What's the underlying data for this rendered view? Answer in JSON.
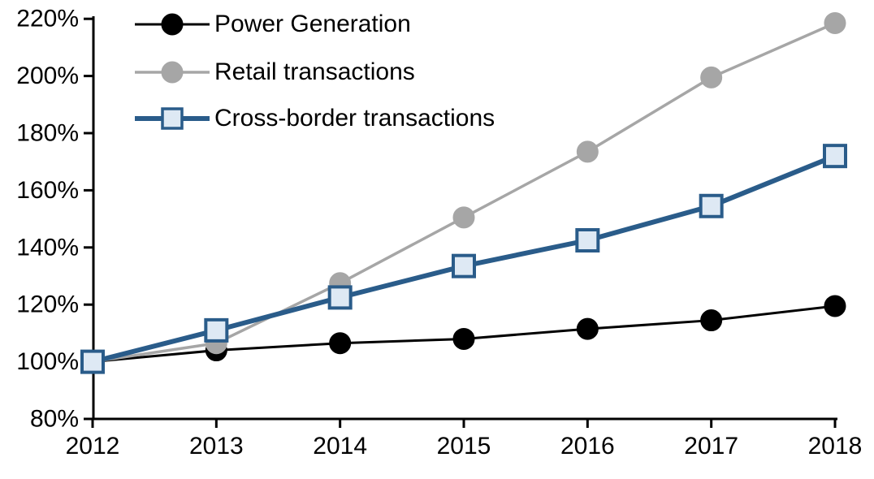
{
  "chart_data": {
    "type": "line",
    "title": "",
    "xlabel": "",
    "ylabel": "",
    "x_labels": [
      "2012",
      "2013",
      "2014",
      "2015",
      "2016",
      "2017",
      "2018"
    ],
    "ylim": [
      80,
      220
    ],
    "y_tick_step": 20,
    "y_tick_suffix": "%",
    "y_tick_labels": [
      "80%",
      "100%",
      "120%",
      "140%",
      "160%",
      "180%",
      "200%",
      "220%"
    ],
    "grid": false,
    "legend_position": "top-left-inside",
    "series": [
      {
        "name": "Power Generation",
        "marker": "circle",
        "line_color": "#000000",
        "marker_fill": "#000000",
        "marker_stroke": "#000000",
        "line_width": 3,
        "values": [
          100,
          104,
          106.5,
          108,
          111.5,
          114.5,
          119.5
        ]
      },
      {
        "name": "Retail transactions",
        "marker": "circle",
        "line_color": "#A6A6A6",
        "marker_fill": "#A6A6A6",
        "marker_stroke": "#A6A6A6",
        "line_width": 3.5,
        "values": [
          100,
          106.5,
          127.5,
          150.5,
          173.5,
          199.5,
          218.5
        ]
      },
      {
        "name": "Cross-border transactions",
        "marker": "square",
        "line_color": "#2A5C8A",
        "marker_fill": "#DEE9F4",
        "marker_stroke": "#2A5C8A",
        "line_width": 6,
        "values": [
          100,
          111,
          122.5,
          133.5,
          142.5,
          154.5,
          172
        ]
      }
    ],
    "axis_color": "#000000"
  }
}
